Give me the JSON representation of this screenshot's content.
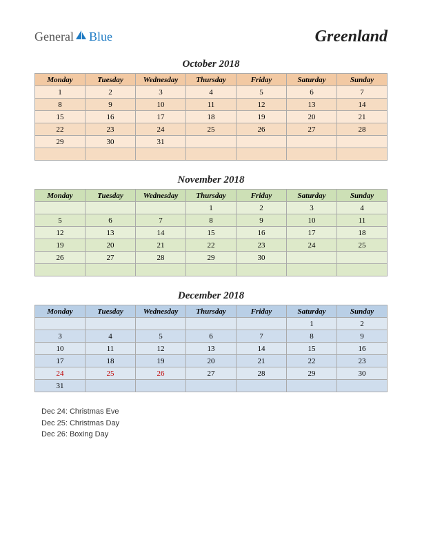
{
  "logo": {
    "general": "General",
    "blue": "Blue"
  },
  "title": "Greenland",
  "day_headers": [
    "Monday",
    "Tuesday",
    "Wednesday",
    "Thursday",
    "Friday",
    "Saturday",
    "Sunday"
  ],
  "months": [
    {
      "title": "October 2018",
      "header_bg": "#f2c9a3",
      "row_bg": "#fbe8d6",
      "alt_bg": "#f6dcc2",
      "weeks": [
        [
          "1",
          "2",
          "3",
          "4",
          "5",
          "6",
          "7"
        ],
        [
          "8",
          "9",
          "10",
          "11",
          "12",
          "13",
          "14"
        ],
        [
          "15",
          "16",
          "17",
          "18",
          "19",
          "20",
          "21"
        ],
        [
          "22",
          "23",
          "24",
          "25",
          "26",
          "27",
          "28"
        ],
        [
          "29",
          "30",
          "31",
          "",
          "",
          "",
          ""
        ],
        [
          "",
          "",
          "",
          "",
          "",
          "",
          ""
        ]
      ],
      "holidays": []
    },
    {
      "title": "November 2018",
      "header_bg": "#cde0b6",
      "row_bg": "#e7efd8",
      "alt_bg": "#dde9c9",
      "weeks": [
        [
          "",
          "",
          "",
          "1",
          "2",
          "3",
          "4"
        ],
        [
          "5",
          "6",
          "7",
          "8",
          "9",
          "10",
          "11"
        ],
        [
          "12",
          "13",
          "14",
          "15",
          "16",
          "17",
          "18"
        ],
        [
          "19",
          "20",
          "21",
          "22",
          "23",
          "24",
          "25"
        ],
        [
          "26",
          "27",
          "28",
          "29",
          "30",
          "",
          ""
        ],
        [
          "",
          "",
          "",
          "",
          "",
          "",
          ""
        ]
      ],
      "holidays": []
    },
    {
      "title": "December 2018",
      "header_bg": "#b9cfe6",
      "row_bg": "#dde7f1",
      "alt_bg": "#cfdded",
      "weeks": [
        [
          "",
          "",
          "",
          "",
          "",
          "1",
          "2"
        ],
        [
          "3",
          "4",
          "5",
          "6",
          "7",
          "8",
          "9"
        ],
        [
          "10",
          "11",
          "12",
          "13",
          "14",
          "15",
          "16"
        ],
        [
          "17",
          "18",
          "19",
          "20",
          "21",
          "22",
          "23"
        ],
        [
          "24",
          "25",
          "26",
          "27",
          "28",
          "29",
          "30"
        ],
        [
          "31",
          "",
          "",
          "",
          "",
          "",
          ""
        ]
      ],
      "holidays": [
        "24",
        "25",
        "26"
      ]
    }
  ],
  "holiday_list": [
    "Dec 24: Christmas Eve",
    "Dec 25: Christmas Day",
    "Dec 26: Boxing Day"
  ]
}
